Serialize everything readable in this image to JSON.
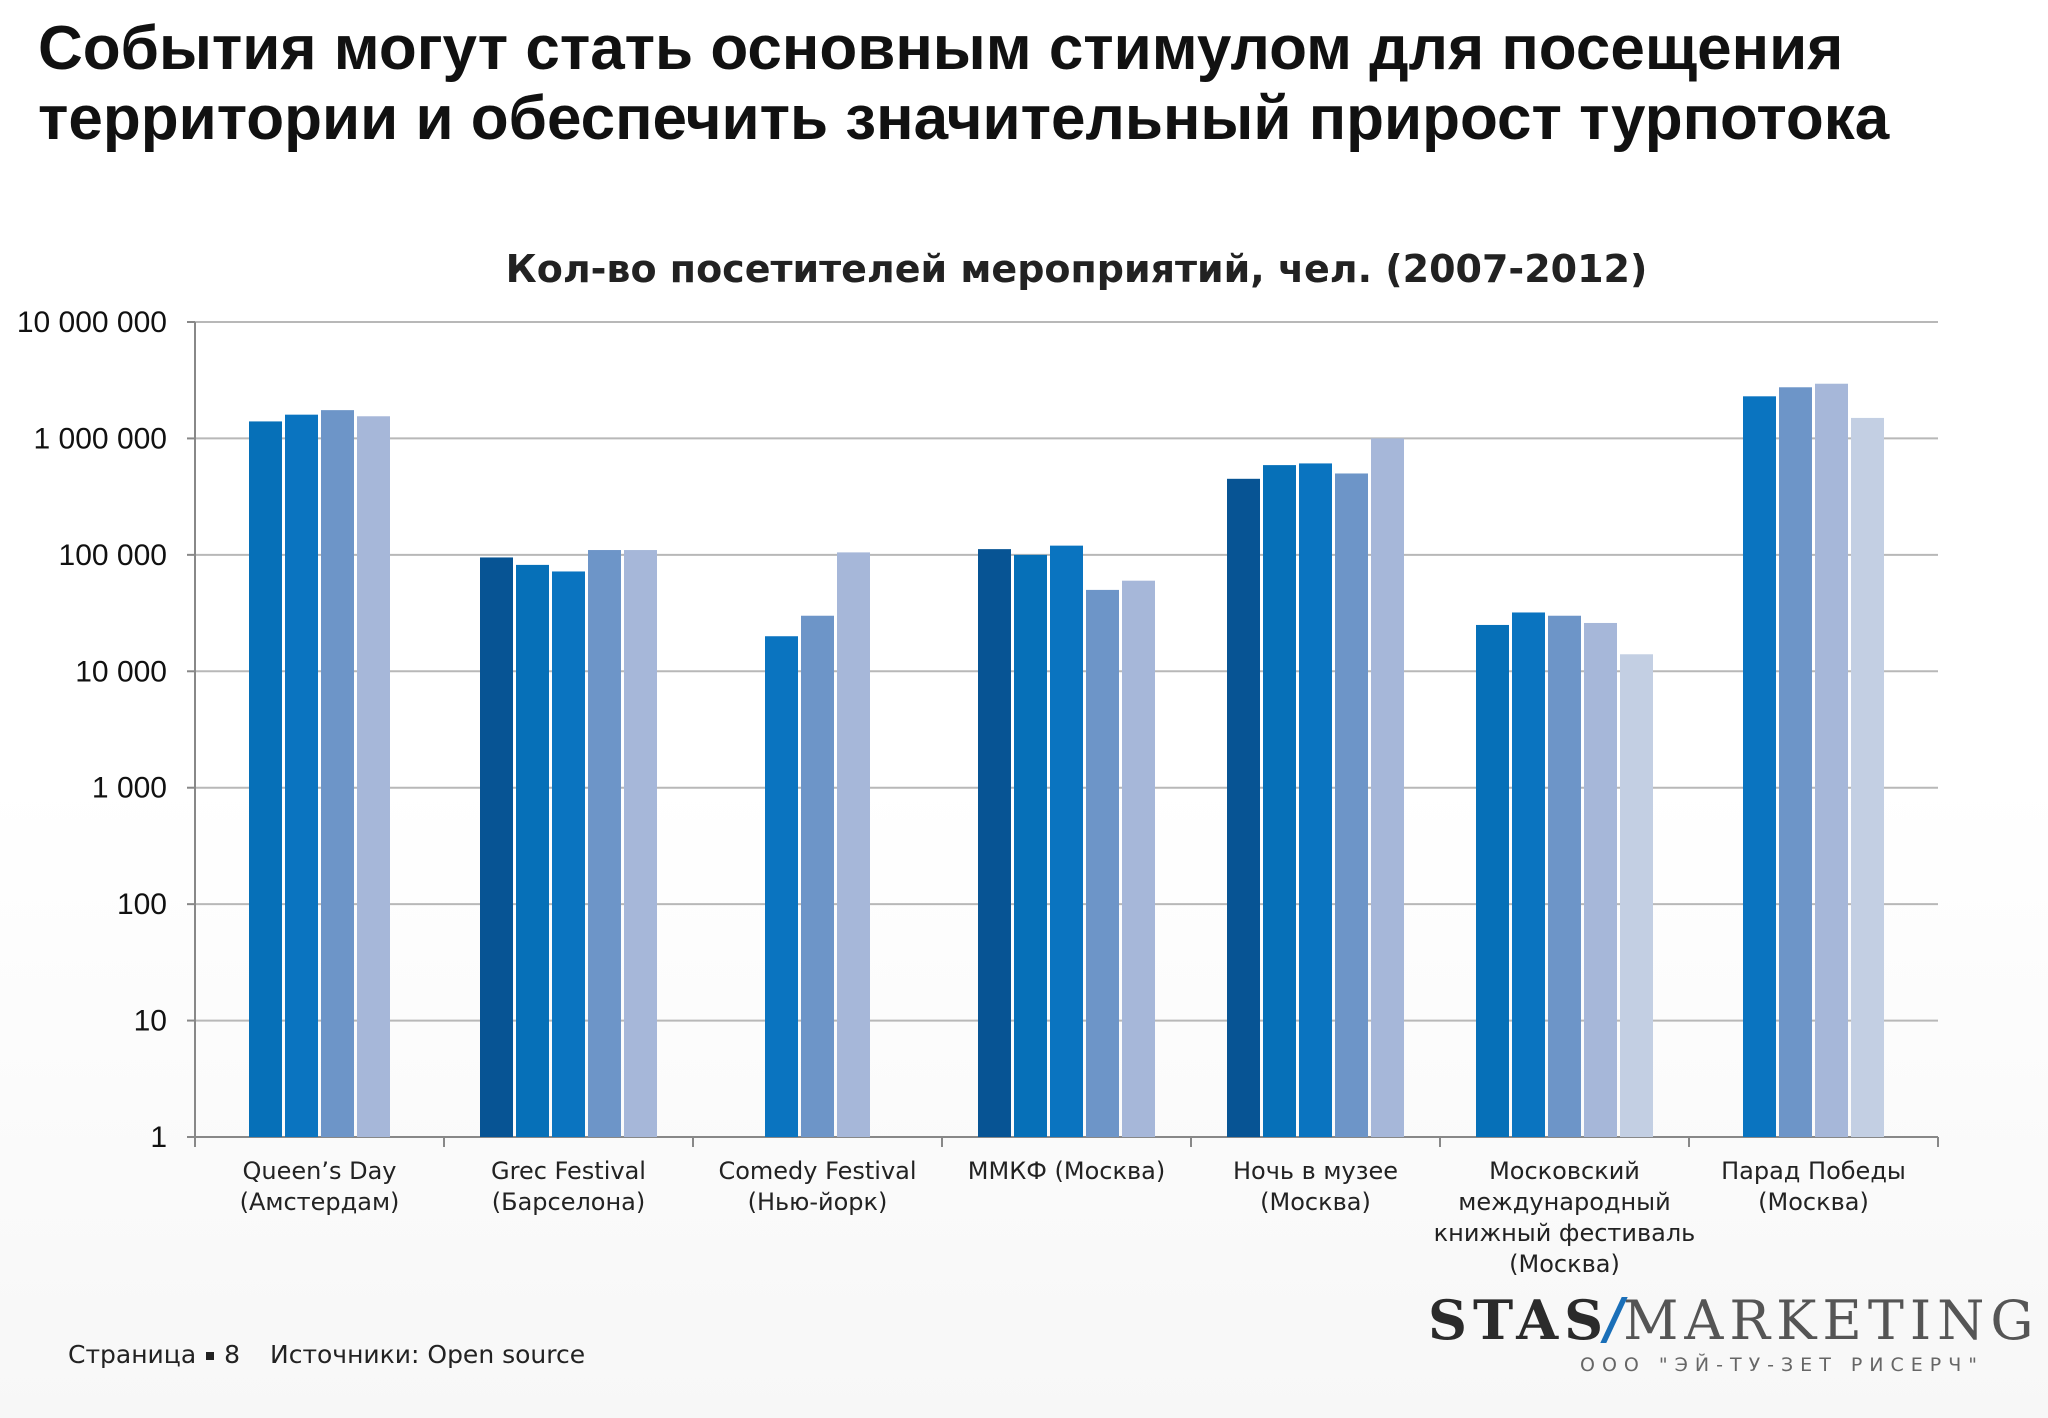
{
  "slide": {
    "title_lines": [
      "События могут стать основным стимулом для посещения",
      "территории и обеспечить значительный прирост турпотока"
    ],
    "page_label": "Страница",
    "page_number": "8",
    "sources": "Источники: Open source"
  },
  "logo": {
    "left": "STAS",
    "right": "MARKETING",
    "subtitle": "ООО \"ЭЙ-ТУ-ЗЕТ РИСЕРЧ\""
  },
  "chart_data": {
    "type": "bar",
    "title": "Кол-во посетителей мероприятий, чел. (2007-2012)",
    "scale": "log",
    "ylim": [
      1,
      10000000
    ],
    "grid": true,
    "y_ticks": [
      {
        "value": 10000000,
        "label": "10 000 000"
      },
      {
        "value": 1000000,
        "label": "1 000 000"
      },
      {
        "value": 100000,
        "label": "100 000"
      },
      {
        "value": 10000,
        "label": "10 000"
      },
      {
        "value": 1000,
        "label": "1 000"
      },
      {
        "value": 100,
        "label": "100"
      },
      {
        "value": 10,
        "label": "10"
      },
      {
        "value": 1,
        "label": "1"
      }
    ],
    "categories": [
      {
        "label": [
          "Queen’s Day",
          "(Амстердам)"
        ],
        "values": [
          null,
          1400000,
          1600000,
          1750000,
          1550000,
          null
        ]
      },
      {
        "label": [
          "Grec Festival",
          "(Барселона)"
        ],
        "values": [
          95000,
          82000,
          72000,
          110000,
          110000,
          null
        ]
      },
      {
        "label": [
          "Comedy Festival",
          "(Нью-йорк)"
        ],
        "values": [
          null,
          null,
          20000,
          30000,
          105000,
          null
        ]
      },
      {
        "label": [
          "ММКФ (Москва)"
        ],
        "values": [
          112000,
          100000,
          120000,
          50000,
          60000,
          null
        ]
      },
      {
        "label": [
          "Ночь в музее",
          "(Москва)"
        ],
        "values": [
          450000,
          590000,
          610000,
          500000,
          1000000,
          null
        ]
      },
      {
        "label": [
          "Московский",
          "международный",
          "книжный фестиваль",
          "(Москва)"
        ],
        "values": [
          null,
          25000,
          32000,
          30000,
          26000,
          14000
        ]
      },
      {
        "label": [
          "Парад Победы",
          "(Москва)"
        ],
        "values": [
          null,
          null,
          2300000,
          2750000,
          2950000,
          1500000
        ]
      }
    ],
    "series_colors": [
      "#075494",
      "#0670b8",
      "#0a74c0",
      "#6d95c8",
      "#a6b7d9",
      "#c3cfe3"
    ]
  }
}
